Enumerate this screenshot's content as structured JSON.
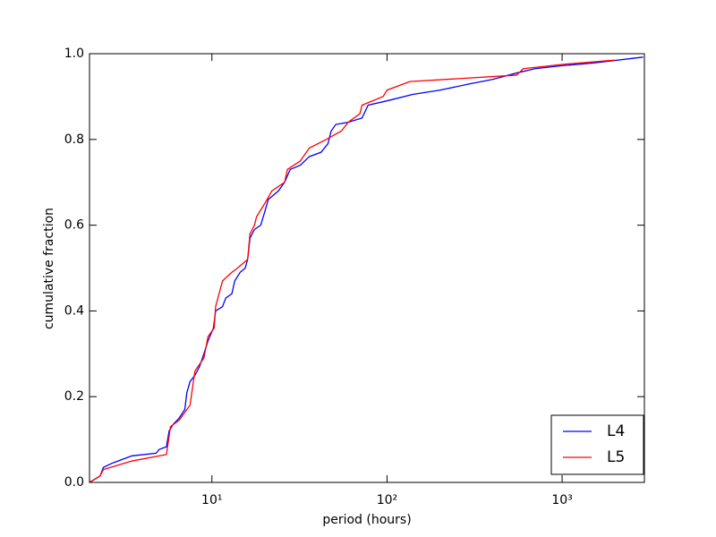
{
  "chart_data": {
    "type": "line",
    "xlabel": "period (hours)",
    "ylabel": "cumulative fraction",
    "xscale": "log",
    "xlim": [
      2.0,
      2950
    ],
    "ylim": [
      0,
      1
    ],
    "xticks": [
      {
        "value": 10,
        "label": "10¹"
      },
      {
        "value": 100,
        "label": "10²"
      },
      {
        "value": 1000,
        "label": "10³"
      }
    ],
    "yticks": [
      {
        "value": 0,
        "label": "0.0"
      },
      0.2,
      0.4,
      0.6,
      0.8,
      {
        "value": 1,
        "label": "1.0"
      }
    ],
    "grid": false,
    "legend": "lower right",
    "series": [
      {
        "name": "L4",
        "color": "#0000ff",
        "x": [
          2.0,
          2.3,
          2.4,
          2.7,
          3.0,
          3.5,
          4.8,
          5.0,
          5.5,
          5.7,
          6.0,
          6.5,
          7.0,
          7.2,
          7.5,
          8.0,
          8.5,
          9.0,
          9.5,
          10.2,
          10.5,
          11.5,
          12.0,
          13,
          13.5,
          14.5,
          15.5,
          16,
          16.5,
          17.5,
          19,
          20,
          21,
          24,
          26,
          28,
          32,
          36,
          42,
          46,
          48,
          51,
          60,
          72,
          78,
          100,
          140,
          200,
          300,
          400,
          550,
          700,
          1000,
          1500,
          2900
        ],
        "values": [
          0.0,
          0.015,
          0.035,
          0.045,
          0.052,
          0.062,
          0.068,
          0.077,
          0.083,
          0.12,
          0.135,
          0.15,
          0.17,
          0.21,
          0.235,
          0.25,
          0.27,
          0.3,
          0.33,
          0.36,
          0.4,
          0.41,
          0.43,
          0.44,
          0.47,
          0.49,
          0.5,
          0.52,
          0.57,
          0.59,
          0.6,
          0.63,
          0.66,
          0.68,
          0.7,
          0.73,
          0.74,
          0.76,
          0.77,
          0.79,
          0.82,
          0.835,
          0.84,
          0.85,
          0.88,
          0.89,
          0.905,
          0.915,
          0.93,
          0.94,
          0.955,
          0.965,
          0.972,
          0.978,
          0.992
        ]
      },
      {
        "name": "L5",
        "color": "#ff0000",
        "x": [
          2.0,
          2.3,
          2.4,
          3.5,
          5.5,
          5.8,
          6.5,
          7.5,
          8.0,
          9.0,
          9.5,
          10.3,
          10.5,
          11.5,
          13,
          14,
          16,
          16.5,
          17.5,
          18,
          20,
          22,
          26,
          27,
          32,
          36,
          45,
          55,
          60,
          70,
          72,
          95,
          100,
          135,
          550,
          600,
          1000,
          2000
        ],
        "values": [
          0.0,
          0.015,
          0.03,
          0.05,
          0.065,
          0.13,
          0.145,
          0.18,
          0.26,
          0.29,
          0.34,
          0.36,
          0.41,
          0.47,
          0.49,
          0.5,
          0.52,
          0.58,
          0.6,
          0.62,
          0.65,
          0.68,
          0.7,
          0.73,
          0.75,
          0.78,
          0.8,
          0.82,
          0.84,
          0.86,
          0.88,
          0.9,
          0.915,
          0.935,
          0.95,
          0.965,
          0.975,
          0.985
        ]
      }
    ]
  }
}
